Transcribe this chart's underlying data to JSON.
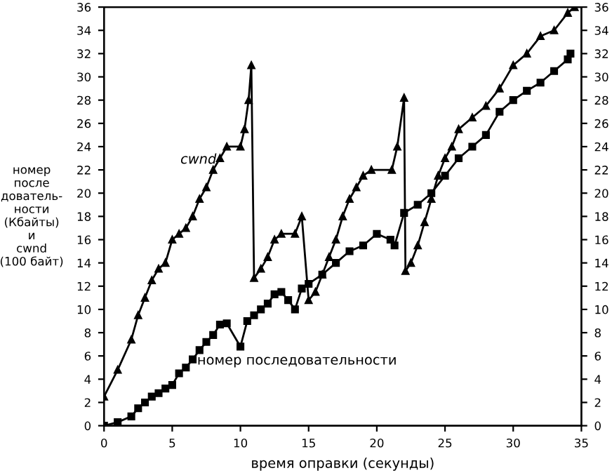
{
  "chart_data": {
    "type": "line",
    "xlabel": "время оправки (секунды)",
    "ylabel": "номер\nпосле\nдователь-\nности\n(Кбайты)\nи\ncwnd\n(100 байт)",
    "annotations": [
      "cwnd",
      "номер последовательности"
    ],
    "xlim": [
      0,
      35
    ],
    "xticks": [
      0,
      5,
      10,
      15,
      20,
      25,
      30,
      35
    ],
    "ylim": [
      0,
      36
    ],
    "yticks": [
      0,
      2,
      4,
      6,
      8,
      10,
      12,
      14,
      16,
      18,
      20,
      22,
      24,
      26,
      28,
      30,
      32,
      34,
      36
    ],
    "y2lim": [
      0,
      36
    ],
    "y2ticks": [
      0,
      2,
      4,
      6,
      8,
      10,
      12,
      14,
      16,
      18,
      20,
      22,
      24,
      26,
      28,
      30,
      32,
      34,
      36
    ],
    "grid": false,
    "legend": false,
    "line_style": "solid",
    "series": [
      {
        "color": "#000000",
        "marker": "triangle",
        "x": [
          0,
          1,
          2,
          2.5,
          3,
          3.5,
          4,
          4.5,
          5,
          5.5,
          6,
          6.5,
          7,
          7.5,
          8,
          8.5,
          9,
          10,
          10.3,
          10.6,
          10.8,
          11,
          11.5,
          12,
          12.5,
          13,
          14,
          14.5,
          15,
          15.5,
          16,
          16.5,
          17,
          17.5,
          18,
          18.5,
          19,
          19.6,
          21.1,
          21.5,
          22,
          22.1,
          22.5,
          23,
          23.5,
          24,
          24.5,
          25,
          25.5,
          26,
          27,
          28,
          29,
          30,
          31,
          32,
          33,
          34,
          34.5
        ],
        "values": [
          2.5,
          4.8,
          7.4,
          9.5,
          11,
          12.5,
          13.5,
          14,
          16,
          16.5,
          17,
          18,
          19.5,
          20.5,
          22,
          23,
          24,
          24,
          25.5,
          28,
          31,
          12.7,
          13.5,
          14.5,
          16,
          16.5,
          16.5,
          18,
          10.8,
          11.5,
          13,
          14.5,
          16,
          18,
          19.5,
          20.5,
          21.5,
          22,
          22,
          24,
          28.2,
          13.3,
          14,
          15.5,
          17.5,
          19.5,
          21.5,
          23,
          24,
          25.5,
          26.5,
          27.5,
          29,
          31,
          32,
          33.5,
          34,
          35.5,
          36
        ]
      },
      {
        "color": "#000000",
        "marker": "square",
        "x": [
          0,
          1,
          2,
          2.5,
          3,
          3.5,
          4,
          4.5,
          5,
          5.5,
          6,
          6.5,
          7,
          7.5,
          8,
          8.5,
          9,
          10,
          10.5,
          11,
          11.5,
          12,
          12.5,
          13,
          13.5,
          14,
          14.5,
          15,
          16,
          17,
          18,
          19,
          20,
          21,
          21.3,
          22,
          23,
          24,
          25,
          26,
          27,
          28,
          29,
          30,
          31,
          32,
          33,
          34,
          34.2
        ],
        "values": [
          0,
          0.3,
          0.8,
          1.5,
          2,
          2.5,
          2.8,
          3.2,
          3.5,
          4.5,
          5,
          5.7,
          6.5,
          7.2,
          7.8,
          8.7,
          8.8,
          6.8,
          9,
          9.5,
          10,
          10.5,
          11.3,
          11.5,
          10.8,
          10,
          11.8,
          12.2,
          13,
          14,
          15,
          15.5,
          16.5,
          16,
          15.5,
          18.3,
          19,
          20,
          21.5,
          23,
          24,
          25,
          27,
          28,
          28.8,
          29.5,
          30.5,
          31.5,
          32
        ]
      }
    ]
  }
}
